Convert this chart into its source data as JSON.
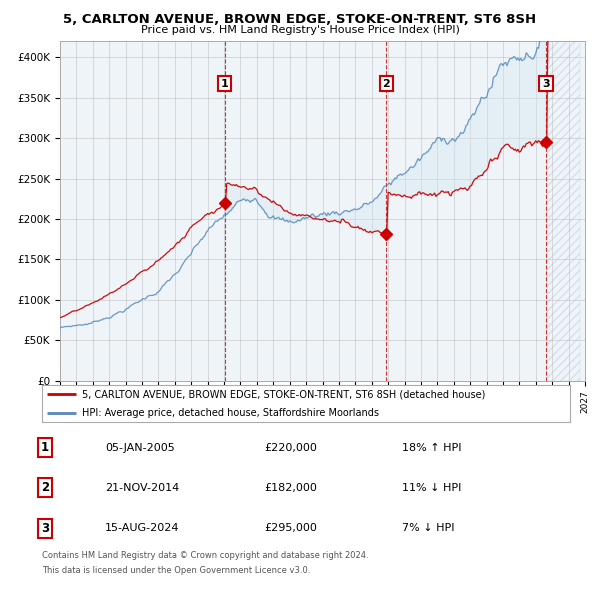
{
  "title1": "5, CARLTON AVENUE, BROWN EDGE, STOKE-ON-TRENT, ST6 8SH",
  "title2": "Price paid vs. HM Land Registry's House Price Index (HPI)",
  "ylabel_ticks": [
    "£0",
    "£50K",
    "£100K",
    "£150K",
    "£200K",
    "£250K",
    "£300K",
    "£350K",
    "£400K"
  ],
  "ylabel_values": [
    0,
    50000,
    100000,
    150000,
    200000,
    250000,
    300000,
    350000,
    400000
  ],
  "ylim": [
    0,
    420000
  ],
  "xlim": [
    1995,
    2027
  ],
  "sale_markers": [
    {
      "year": 2005.03,
      "price": 220000,
      "label": "1"
    },
    {
      "year": 2014.9,
      "price": 182000,
      "label": "2"
    },
    {
      "year": 2024.62,
      "price": 295000,
      "label": "3"
    }
  ],
  "legend_line1": "5, CARLTON AVENUE, BROWN EDGE, STOKE-ON-TRENT, ST6 8SH (detached house)",
  "legend_line2": "HPI: Average price, detached house, Staffordshire Moorlands",
  "table_rows": [
    {
      "num": "1",
      "date": "05-JAN-2005",
      "price": "£220,000",
      "hpi": "18% ↑ HPI"
    },
    {
      "num": "2",
      "date": "21-NOV-2014",
      "price": "£182,000",
      "hpi": "11% ↓ HPI"
    },
    {
      "num": "3",
      "date": "15-AUG-2024",
      "price": "£295,000",
      "hpi": "7% ↓ HPI"
    }
  ],
  "footer1": "Contains HM Land Registry data © Crown copyright and database right 2024.",
  "footer2": "This data is licensed under the Open Government Licence v3.0.",
  "red_color": "#cc0000",
  "blue_color": "#5588bb",
  "fill_color": "#d0e4f0",
  "bg_color": "#ffffff",
  "chart_bg": "#eef4f8",
  "grid_color": "#bbbbbb",
  "hatch_color": "#bbccdd"
}
